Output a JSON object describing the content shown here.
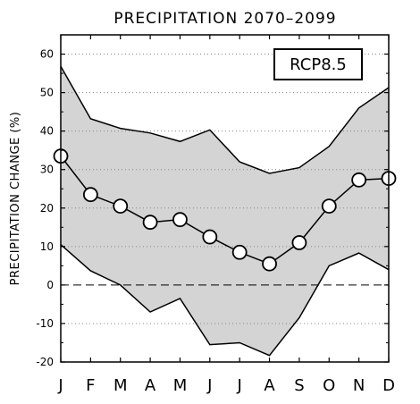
{
  "chart_data": {
    "type": "line",
    "title": "PRECIPITATION 2070–2099",
    "ylabel": "PRECIPITATION CHANGE (%)",
    "xlabel": "",
    "annotation": "RCP8.5",
    "categories": [
      "J",
      "F",
      "M",
      "A",
      "M",
      "J",
      "J",
      "A",
      "S",
      "O",
      "N",
      "D"
    ],
    "ylim": [
      -20,
      65
    ],
    "yticks": [
      -20,
      -10,
      0,
      10,
      20,
      30,
      40,
      50,
      60
    ],
    "grid": "horizontal dotted",
    "zero_line": "dashed",
    "series": [
      {
        "role": "mean",
        "values": [
          33.5,
          23.5,
          20.5,
          16.3,
          17.0,
          12.5,
          8.5,
          5.5,
          11.0,
          20.5,
          27.3,
          27.7
        ]
      },
      {
        "role": "upper",
        "values": [
          56.8,
          43.2,
          40.7,
          39.5,
          37.3,
          40.3,
          32.0,
          29.0,
          30.5,
          36.0,
          46.0,
          51.3
        ]
      },
      {
        "role": "lower",
        "values": [
          10.5,
          3.7,
          0.0,
          -7.0,
          -3.5,
          -15.5,
          -15.0,
          -18.3,
          -8.5,
          5.0,
          8.3,
          4.0
        ]
      }
    ],
    "colors": {
      "band": "#d4d4d4",
      "line": "#000000",
      "marker_fill": "#ffffff"
    }
  }
}
